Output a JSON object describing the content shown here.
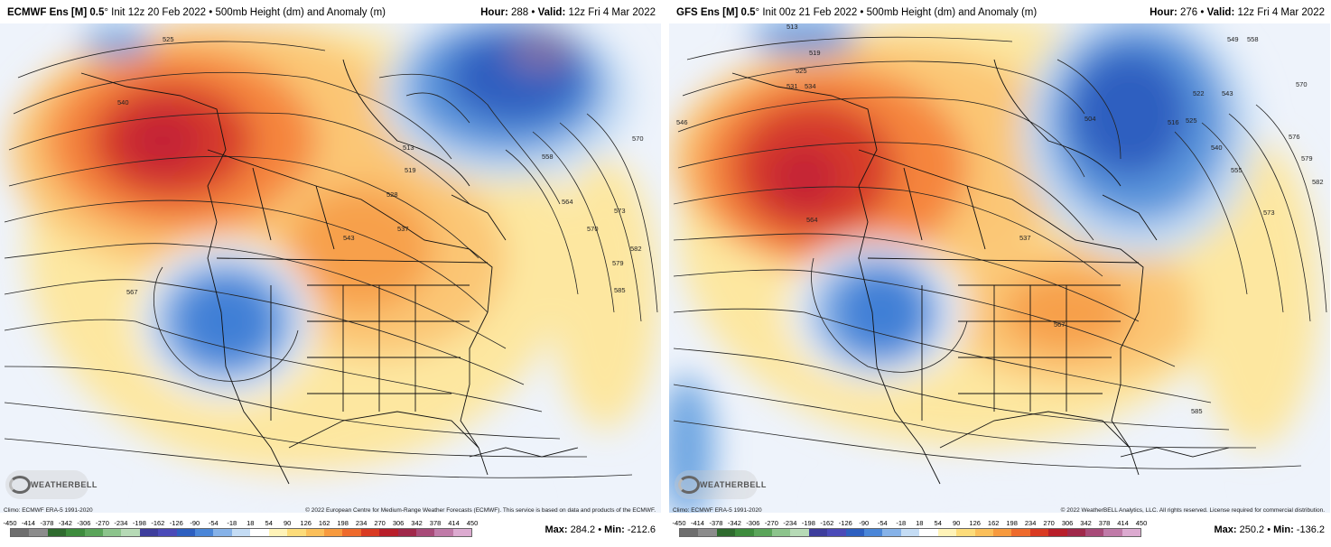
{
  "panels": [
    {
      "model": "ECMWF Ens [M] 0.5",
      "degree": "°",
      "init": "Init 12z 20 Feb 2022",
      "product": "500mb Height (dm) and Anomaly (m)",
      "hour_label": "Hour:",
      "hour": "288",
      "valid_label": "Valid:",
      "valid": "12z Fri 4 Mar 2022",
      "climo": "Climo: ECMWF ERA-5 1991-2020",
      "copyright": "© 2022 European Centre for Medium-Range Weather Forecasts (ECMWF). This service is based on data and products of the ECMWF.",
      "max_label": "Max:",
      "max": "284.2",
      "min_label": "Min:",
      "min": "-212.6",
      "contour_labels": [
        "525",
        "531",
        "519",
        "540",
        "513",
        "519",
        "528",
        "537",
        "543",
        "546",
        "552",
        "555",
        "558",
        "561",
        "564",
        "567",
        "570",
        "573",
        "576",
        "579",
        "582",
        "585"
      ],
      "logo_text": "WEATHERBELL"
    },
    {
      "model": "GFS Ens [M] 0.5",
      "degree": "°",
      "init": "Init 00z 21 Feb 2022",
      "product": "500mb Height (dm) and Anomaly (m)",
      "hour_label": "Hour:",
      "hour": "276",
      "valid_label": "Valid:",
      "valid": "12z Fri 4 Mar 2022",
      "climo": "Climo: ECMWF ERA-5 1991-2020",
      "copyright": "© 2022 WeatherBELL Analytics, LLC. All rights reserved. License required for commercial distribution.",
      "max_label": "Max:",
      "max": "250.2",
      "min_label": "Min:",
      "min": "-136.2",
      "contour_labels": [
        "513",
        "519",
        "525",
        "531",
        "534",
        "546",
        "504",
        "516",
        "522",
        "525",
        "537",
        "540",
        "543",
        "549",
        "555",
        "558",
        "564",
        "567",
        "570",
        "573",
        "576",
        "579",
        "582",
        "585"
      ],
      "logo_text": "WEATHERBELL"
    }
  ],
  "scale": {
    "ticks": [
      "-450",
      "-414",
      "-378",
      "-342",
      "-306",
      "-270",
      "-234",
      "-198",
      "-162",
      "-126",
      "-90",
      "-54",
      "-18",
      "18",
      "54",
      "90",
      "126",
      "162",
      "198",
      "234",
      "270",
      "306",
      "342",
      "378",
      "414",
      "450"
    ],
    "colors": [
      "#6e6e6e",
      "#8c8c8c",
      "#2e6b2e",
      "#3d8c3d",
      "#5aa55a",
      "#8cc48c",
      "#b6dab6",
      "#3d3d9c",
      "#4a4ab8",
      "#2d5fc0",
      "#4a86d8",
      "#86b2e8",
      "#c4dcf4",
      "#ffffff",
      "#fff3b8",
      "#fddc7a",
      "#fbbf5a",
      "#f79a3e",
      "#ee6a2c",
      "#d93a22",
      "#b81e2a",
      "#a0284a",
      "#a84a78",
      "#c07aa8",
      "#dcaad0"
    ]
  }
}
